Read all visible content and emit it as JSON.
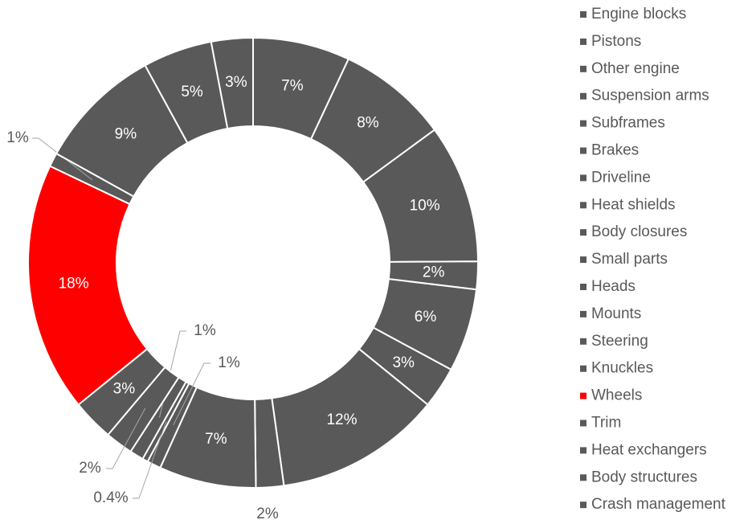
{
  "chart_data": {
    "type": "donut",
    "categories": [
      "Engine blocks",
      "Pistons",
      "Other engine",
      "Suspension arms",
      "Subframes",
      "Brakes",
      "Driveline",
      "Heat shields",
      "Body closures",
      "Small parts",
      "Heads",
      "Mounts",
      "Steering",
      "Knuckles",
      "Wheels",
      "Trim",
      "Heat exchangers",
      "Body structures",
      "Crash management"
    ],
    "values": [
      7,
      8,
      10,
      2,
      6,
      3,
      12,
      2,
      7,
      1,
      0.4,
      1,
      2,
      3,
      18,
      1,
      9,
      5,
      3
    ],
    "value_labels": [
      "7%",
      "8%",
      "10%",
      "2%",
      "6%",
      "3%",
      "12%",
      "2%",
      "7%",
      "1%",
      "0.4%",
      "1%",
      "2%",
      "3%",
      "18%",
      "1%",
      "9%",
      "5%",
      "3%"
    ],
    "colors": [
      "#595959",
      "#595959",
      "#595959",
      "#595959",
      "#595959",
      "#595959",
      "#595959",
      "#595959",
      "#595959",
      "#595959",
      "#595959",
      "#595959",
      "#595959",
      "#595959",
      "#ff0000",
      "#595959",
      "#595959",
      "#595959",
      "#595959"
    ],
    "legend": "right"
  }
}
